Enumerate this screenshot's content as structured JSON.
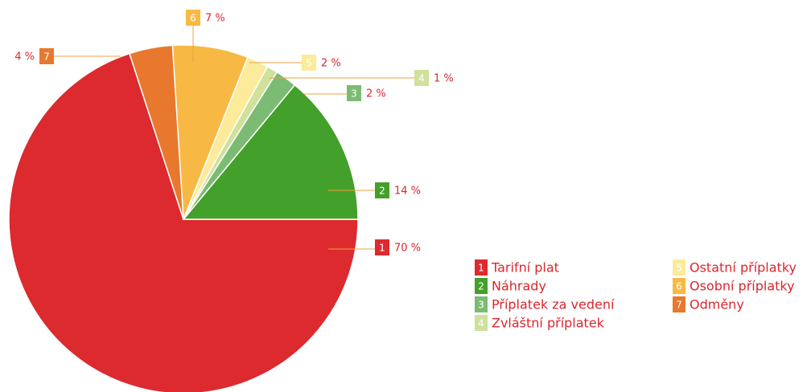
{
  "chart_data": {
    "type": "pie",
    "keys": [
      "1",
      "2",
      "3",
      "4",
      "5",
      "6",
      "7"
    ],
    "categories": [
      "Tarifní plat",
      "Náhrady",
      "Příplatek za vedení",
      "Zvláštní příplatek",
      "Ostatní příplatky",
      "Osobní příplatky",
      "Odměny"
    ],
    "values": [
      70,
      14,
      2,
      1,
      2,
      7,
      4
    ],
    "value_labels": [
      "70 %",
      "14 %",
      "2 %",
      "1 %",
      "2 %",
      "7 %",
      "4 %"
    ],
    "colors": [
      "#dc2a2e",
      "#43a02a",
      "#7cbb74",
      "#cfe19a",
      "#fbeb9a",
      "#f8b944",
      "#e8782e"
    ]
  }
}
